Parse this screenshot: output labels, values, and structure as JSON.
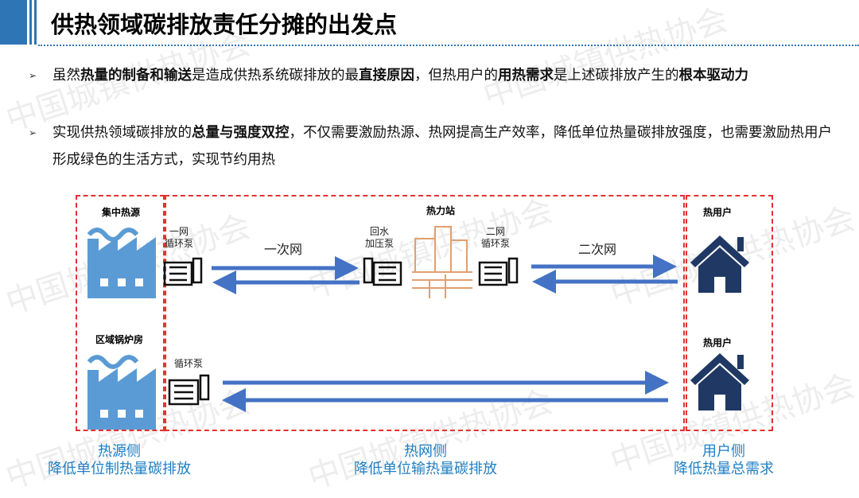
{
  "header": {
    "title": "供热领域碳排放责任分摊的出发点",
    "accent": "#2e75b6"
  },
  "watermark": "中国城镇供热协会",
  "bullets": [
    {
      "parts": [
        {
          "t": "虽然",
          "b": false
        },
        {
          "t": "热量的制备和输送",
          "b": true
        },
        {
          "t": "是造成供热系统碳排放的最",
          "b": false
        },
        {
          "t": "直接原因",
          "b": true
        },
        {
          "t": "，但热用户的",
          "b": false
        },
        {
          "t": "用热需求",
          "b": true
        },
        {
          "t": "是上述碳排放产生的",
          "b": false
        },
        {
          "t": "根本驱动力",
          "b": true
        }
      ]
    },
    {
      "parts": [
        {
          "t": "实现供热领域碳排放的",
          "b": false
        },
        {
          "t": "总量与强度双控",
          "b": true
        },
        {
          "t": "，不仅需要激励热源、热网提高生产效率，降低单位热量碳排放强度，也需要激励热用户形成绿色的生活方式，实现节约用热",
          "b": false
        }
      ]
    }
  ],
  "diagram": {
    "source1": "集中热源",
    "source2": "区域锅炉房",
    "station": "热力站",
    "user1": "热用户",
    "user2": "热用户",
    "pump1": "一网\n循环泵",
    "pump2": "回水\n加压泵",
    "pump3": "二网\n循环泵",
    "pump4": "循环泵",
    "primary_net": "一次网",
    "secondary_net": "二次网",
    "captions": [
      {
        "title": "热源侧",
        "sub": "降低单位制热量碳排放"
      },
      {
        "title": "热网侧",
        "sub": "降低单位输热量碳排放"
      },
      {
        "title": "用户侧",
        "sub": "降低热量总需求"
      }
    ],
    "colors": {
      "arrow": "#4472c4",
      "factory": "#5b9bd5",
      "house": "#1f3864",
      "building": "#e0a070",
      "dash": "#e53030",
      "caption": "#1f7fc4"
    }
  }
}
